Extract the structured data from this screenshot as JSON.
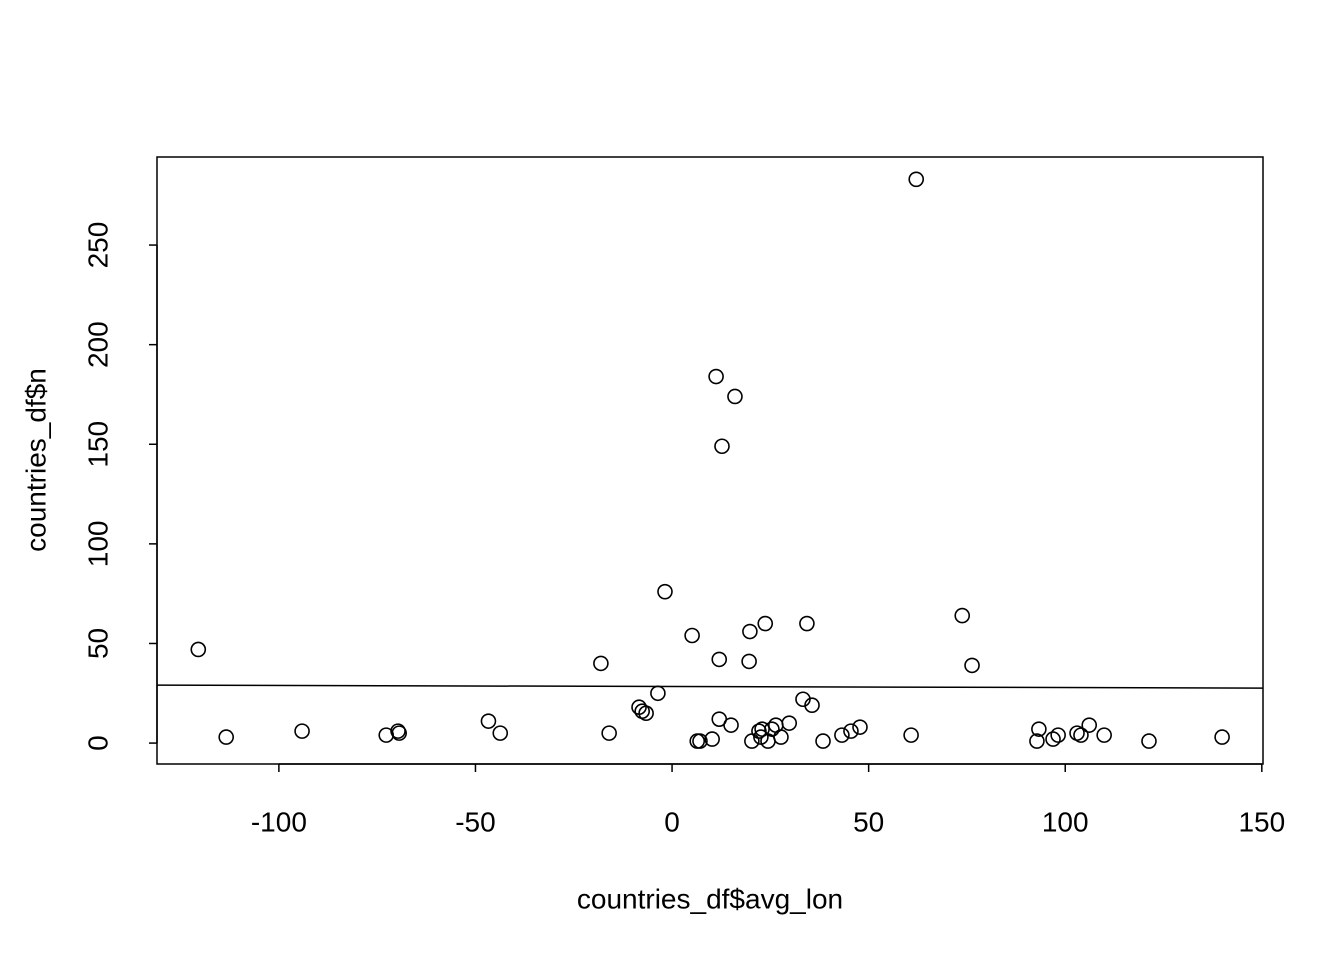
{
  "chart_data": {
    "type": "scatter",
    "x_label": "countries_df$avg_lon",
    "y_label": "countries_df$n",
    "xlim": [
      -131,
      150.3
    ],
    "ylim": [
      -10.5,
      294.2
    ],
    "xticks": [
      -100,
      -50,
      0,
      50,
      100,
      150
    ],
    "yticks": [
      0,
      50,
      100,
      150,
      200,
      250
    ],
    "color": "#000000",
    "x": [
      -120.5,
      -113.4,
      -94.1,
      -72.7,
      -69.7,
      -69.4,
      -46.7,
      -43.7,
      -18.1,
      -16.0,
      -8.4,
      -7.6,
      -6.6,
      -3.6,
      -1.8,
      5.1,
      6.4,
      7.1,
      10.2,
      11.2,
      12.0,
      12.0,
      12.7,
      15.0,
      16.0,
      19.8,
      19.6,
      20.3,
      22.1,
      22.6,
      22.9,
      23.7,
      24.4,
      25.4,
      26.4,
      27.7,
      29.8,
      33.3,
      34.3,
      35.6,
      38.4,
      43.2,
      45.5,
      47.8,
      60.8,
      62.1,
      73.8,
      76.3,
      92.8,
      93.3,
      96.9,
      98.2,
      103.0,
      104.0,
      106.1,
      109.9,
      121.3,
      139.9
    ],
    "y": [
      47,
      3,
      6,
      4,
      6,
      5,
      11,
      5,
      40,
      5,
      18,
      16,
      15,
      25,
      76,
      54,
      1,
      1,
      2,
      184,
      42,
      12,
      149,
      9,
      174,
      56,
      41,
      1,
      6,
      3,
      7,
      60,
      1,
      7,
      9,
      3,
      10,
      22,
      60,
      19,
      1,
      4,
      6,
      8,
      4,
      283,
      64,
      39,
      1,
      7,
      2,
      4,
      5,
      4,
      9,
      4,
      1,
      3
    ],
    "fit_line": {
      "x": [
        -131,
        150.3
      ],
      "y": [
        29.1,
        27.6
      ]
    }
  }
}
